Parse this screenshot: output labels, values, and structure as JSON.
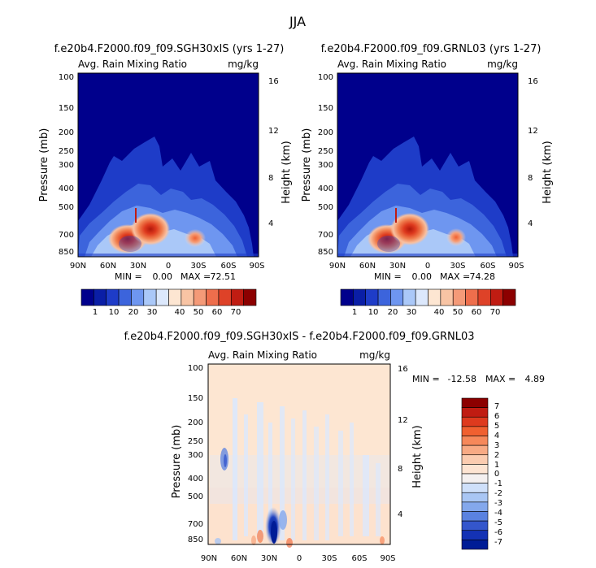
{
  "page_title": "JJA",
  "chart_data": [
    {
      "type": "heatmap",
      "id": "panel-sgh",
      "title": "f.e20b4.F2000.f09_f09.SGH30xIS (yrs 1-27)",
      "subtitle_left": "Avg. Rain Mixing Ratio",
      "subtitle_right": "mg/kg",
      "ylabel": "Pressure (mb)",
      "ylabel_right": "Height (km)",
      "x_ticks": [
        "90N",
        "60N",
        "30N",
        "0",
        "30S",
        "60S",
        "90S"
      ],
      "y_ticks": [
        "100",
        "150",
        "200",
        "250",
        "300",
        "400",
        "500",
        "700",
        "850"
      ],
      "y_ticks_right": [
        "16",
        "12",
        "8",
        "4"
      ],
      "min_label": "MIN =",
      "min_value": "0.00",
      "max_label": "MAX =",
      "max_value": "72.51",
      "colorbar_labels": [
        "1",
        "10",
        "20",
        "30",
        "40",
        "50",
        "60",
        "70"
      ],
      "colorbar_colors": [
        "#00008c",
        "#0a1ea6",
        "#1e3cc8",
        "#3c64dc",
        "#6e96f0",
        "#aac8f8",
        "#dce8fc",
        "#fde6d2",
        "#f8c4a4",
        "#f49a78",
        "#ee6e4c",
        "#de4228",
        "#c01c12",
        "#8c0000"
      ],
      "xlim": [
        90,
        -90
      ],
      "ylim_mb": [
        100,
        900
      ]
    },
    {
      "type": "heatmap",
      "id": "panel-grnl",
      "title": "f.e20b4.F2000.f09_f09.GRNL03 (yrs 1-27)",
      "subtitle_left": "Avg. Rain Mixing Ratio",
      "subtitle_right": "mg/kg",
      "ylabel": "Pressure (mb)",
      "ylabel_right": "Height (km)",
      "x_ticks": [
        "90N",
        "60N",
        "30N",
        "0",
        "30S",
        "60S",
        "90S"
      ],
      "y_ticks": [
        "100",
        "150",
        "200",
        "250",
        "300",
        "400",
        "500",
        "700",
        "850"
      ],
      "y_ticks_right": [
        "16",
        "12",
        "8",
        "4"
      ],
      "min_label": "MIN =",
      "min_value": "0.00",
      "max_label": "MAX =",
      "max_value": "74.28",
      "colorbar_labels": [
        "1",
        "10",
        "20",
        "30",
        "40",
        "50",
        "60",
        "70"
      ],
      "colorbar_colors": [
        "#00008c",
        "#0a1ea6",
        "#1e3cc8",
        "#3c64dc",
        "#6e96f0",
        "#aac8f8",
        "#dce8fc",
        "#fde6d2",
        "#f8c4a4",
        "#f49a78",
        "#ee6e4c",
        "#de4228",
        "#c01c12",
        "#8c0000"
      ],
      "xlim": [
        90,
        -90
      ],
      "ylim_mb": [
        100,
        900
      ]
    },
    {
      "type": "heatmap",
      "id": "panel-diff",
      "title": "f.e20b4.F2000.f09_f09.SGH30xIS - f.e20b4.F2000.f09_f09.GRNL03",
      "subtitle_left": "Avg. Rain Mixing Ratio",
      "subtitle_right": "mg/kg",
      "ylabel": "Pressure (mb)",
      "ylabel_right": "Height (km)",
      "x_ticks": [
        "90N",
        "60N",
        "30N",
        "0",
        "30S",
        "60S",
        "90S"
      ],
      "y_ticks": [
        "100",
        "150",
        "200",
        "250",
        "300",
        "400",
        "500",
        "700",
        "850"
      ],
      "y_ticks_right": [
        "16",
        "12",
        "8",
        "4"
      ],
      "min_label": "MIN =",
      "min_value": "-12.58",
      "max_label": "MAX =",
      "max_value": "4.89",
      "colorbar_labels": [
        "7",
        "6",
        "5",
        "4",
        "3",
        "2",
        "1",
        "0",
        "-1",
        "-2",
        "-3",
        "-4",
        "-5",
        "-6",
        "-7"
      ],
      "colorbar_colors": [
        "#8c0000",
        "#c01c12",
        "#de3a1e",
        "#f06030",
        "#f6885a",
        "#f8aa84",
        "#fbccb0",
        "#fde4d2",
        "#f4f0f0",
        "#cfe0fa",
        "#a9c6f4",
        "#84a8ec",
        "#5a82e0",
        "#3456cc",
        "#1432b4",
        "#001c96"
      ],
      "xlim": [
        90,
        -90
      ],
      "ylim_mb": [
        100,
        900
      ]
    }
  ]
}
